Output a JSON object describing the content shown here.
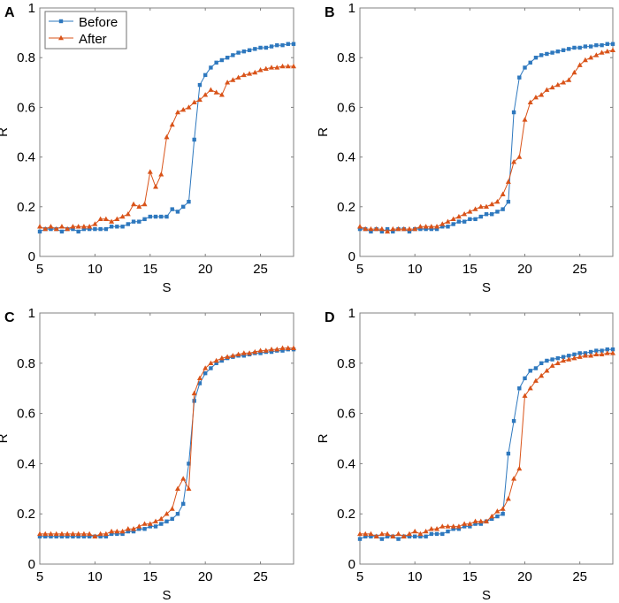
{
  "chart_data": [
    {
      "panel": "A",
      "type": "line",
      "xlabel": "S",
      "ylabel": "R",
      "xlim": [
        5,
        28
      ],
      "ylim": [
        0,
        1
      ],
      "xticks": [
        "5",
        "10",
        "15",
        "20",
        "25"
      ],
      "yticks": [
        "0",
        "0.2",
        "0.4",
        "0.6",
        "0.8",
        "1"
      ],
      "legend": {
        "placement": "top-left",
        "entries": [
          "Before",
          "After"
        ]
      },
      "series": [
        {
          "name": "Before",
          "values": [
            0.1,
            0.11,
            0.11,
            0.11,
            0.1,
            0.11,
            0.11,
            0.1,
            0.11,
            0.11,
            0.11,
            0.11,
            0.11,
            0.12,
            0.12,
            0.12,
            0.13,
            0.14,
            0.14,
            0.15,
            0.16,
            0.16,
            0.16,
            0.16,
            0.19,
            0.18,
            0.2,
            0.22,
            0.47,
            0.69,
            0.73,
            0.76,
            0.78,
            0.79,
            0.8,
            0.81,
            0.82,
            0.825,
            0.83,
            0.835,
            0.84,
            0.84,
            0.845,
            0.85,
            0.85,
            0.855,
            0.855
          ]
        },
        {
          "name": "After",
          "values": [
            0.12,
            0.11,
            0.12,
            0.11,
            0.12,
            0.11,
            0.12,
            0.12,
            0.12,
            0.12,
            0.13,
            0.15,
            0.15,
            0.14,
            0.15,
            0.16,
            0.17,
            0.21,
            0.2,
            0.21,
            0.34,
            0.28,
            0.33,
            0.48,
            0.53,
            0.58,
            0.59,
            0.6,
            0.62,
            0.63,
            0.65,
            0.67,
            0.66,
            0.65,
            0.7,
            0.71,
            0.72,
            0.73,
            0.735,
            0.74,
            0.75,
            0.755,
            0.76,
            0.76,
            0.765,
            0.765,
            0.765
          ]
        }
      ]
    },
    {
      "panel": "B",
      "type": "line",
      "xlabel": "S",
      "ylabel": "R",
      "xlim": [
        5,
        28
      ],
      "ylim": [
        0,
        1
      ],
      "xticks": [
        "5",
        "10",
        "15",
        "20",
        "25"
      ],
      "yticks": [
        "0",
        "0.2",
        "0.4",
        "0.6",
        "0.8",
        "1"
      ],
      "series": [
        {
          "name": "Before",
          "values": [
            0.11,
            0.11,
            0.1,
            0.11,
            0.1,
            0.11,
            0.1,
            0.11,
            0.11,
            0.1,
            0.11,
            0.11,
            0.11,
            0.11,
            0.11,
            0.12,
            0.12,
            0.13,
            0.14,
            0.14,
            0.15,
            0.15,
            0.16,
            0.17,
            0.17,
            0.18,
            0.19,
            0.22,
            0.58,
            0.72,
            0.76,
            0.78,
            0.8,
            0.81,
            0.815,
            0.82,
            0.825,
            0.83,
            0.835,
            0.84,
            0.84,
            0.845,
            0.845,
            0.85,
            0.85,
            0.855,
            0.855
          ]
        },
        {
          "name": "After",
          "values": [
            0.12,
            0.11,
            0.11,
            0.11,
            0.11,
            0.1,
            0.11,
            0.11,
            0.11,
            0.11,
            0.11,
            0.12,
            0.12,
            0.12,
            0.12,
            0.13,
            0.14,
            0.15,
            0.16,
            0.17,
            0.18,
            0.19,
            0.2,
            0.2,
            0.21,
            0.22,
            0.25,
            0.3,
            0.38,
            0.4,
            0.55,
            0.62,
            0.64,
            0.65,
            0.67,
            0.68,
            0.69,
            0.7,
            0.71,
            0.74,
            0.77,
            0.79,
            0.8,
            0.81,
            0.82,
            0.825,
            0.83
          ]
        }
      ]
    },
    {
      "panel": "C",
      "type": "line",
      "xlabel": "S",
      "ylabel": "R",
      "xlim": [
        5,
        28
      ],
      "ylim": [
        0,
        1
      ],
      "xticks": [
        "5",
        "10",
        "15",
        "20",
        "25"
      ],
      "yticks": [
        "0",
        "0.2",
        "0.4",
        "0.6",
        "0.8",
        "1"
      ],
      "series": [
        {
          "name": "Before",
          "values": [
            0.11,
            0.11,
            0.11,
            0.11,
            0.11,
            0.11,
            0.11,
            0.11,
            0.11,
            0.11,
            0.11,
            0.11,
            0.11,
            0.12,
            0.12,
            0.12,
            0.13,
            0.13,
            0.14,
            0.14,
            0.15,
            0.15,
            0.16,
            0.17,
            0.18,
            0.2,
            0.24,
            0.4,
            0.65,
            0.72,
            0.76,
            0.78,
            0.8,
            0.81,
            0.82,
            0.825,
            0.83,
            0.83,
            0.835,
            0.84,
            0.84,
            0.845,
            0.845,
            0.85,
            0.85,
            0.855,
            0.855
          ]
        },
        {
          "name": "After",
          "values": [
            0.12,
            0.12,
            0.12,
            0.12,
            0.12,
            0.12,
            0.12,
            0.12,
            0.12,
            0.12,
            0.11,
            0.12,
            0.12,
            0.13,
            0.13,
            0.13,
            0.14,
            0.14,
            0.15,
            0.16,
            0.16,
            0.17,
            0.18,
            0.2,
            0.22,
            0.3,
            0.34,
            0.3,
            0.68,
            0.74,
            0.78,
            0.8,
            0.81,
            0.82,
            0.825,
            0.83,
            0.835,
            0.84,
            0.84,
            0.845,
            0.85,
            0.85,
            0.855,
            0.855,
            0.86,
            0.86,
            0.86
          ]
        }
      ]
    },
    {
      "panel": "D",
      "type": "line",
      "xlabel": "S",
      "ylabel": "R",
      "xlim": [
        5,
        28
      ],
      "ylim": [
        0,
        1
      ],
      "xticks": [
        "5",
        "10",
        "15",
        "20",
        "25"
      ],
      "yticks": [
        "0",
        "0.2",
        "0.4",
        "0.6",
        "0.8",
        "1"
      ],
      "series": [
        {
          "name": "Before",
          "values": [
            0.1,
            0.11,
            0.11,
            0.11,
            0.1,
            0.11,
            0.11,
            0.1,
            0.11,
            0.11,
            0.11,
            0.11,
            0.11,
            0.12,
            0.12,
            0.12,
            0.13,
            0.14,
            0.14,
            0.15,
            0.15,
            0.16,
            0.16,
            0.17,
            0.18,
            0.19,
            0.2,
            0.44,
            0.57,
            0.7,
            0.74,
            0.77,
            0.78,
            0.8,
            0.81,
            0.815,
            0.82,
            0.825,
            0.83,
            0.835,
            0.84,
            0.84,
            0.845,
            0.85,
            0.85,
            0.855,
            0.855
          ]
        },
        {
          "name": "After",
          "values": [
            0.12,
            0.12,
            0.12,
            0.11,
            0.12,
            0.12,
            0.11,
            0.12,
            0.11,
            0.12,
            0.13,
            0.12,
            0.13,
            0.14,
            0.14,
            0.15,
            0.15,
            0.15,
            0.15,
            0.16,
            0.16,
            0.17,
            0.17,
            0.17,
            0.19,
            0.21,
            0.22,
            0.26,
            0.34,
            0.38,
            0.67,
            0.7,
            0.73,
            0.75,
            0.77,
            0.79,
            0.8,
            0.81,
            0.815,
            0.82,
            0.825,
            0.83,
            0.83,
            0.835,
            0.835,
            0.84,
            0.84
          ]
        }
      ]
    }
  ],
  "x_values": [
    5,
    5.5,
    6,
    6.5,
    7,
    7.5,
    8,
    8.5,
    9,
    9.5,
    10,
    10.5,
    11,
    11.5,
    12,
    12.5,
    13,
    13.5,
    14,
    14.5,
    15,
    15.5,
    16,
    16.5,
    17,
    17.5,
    18,
    18.5,
    19,
    19.5,
    20,
    20.5,
    21,
    21.5,
    22,
    22.5,
    23,
    23.5,
    24,
    24.5,
    25,
    25.5,
    26,
    26.5,
    27,
    27.5,
    28
  ],
  "colors": {
    "Before": "#2E78BE",
    "After": "#D95319",
    "axis": "#808080"
  }
}
